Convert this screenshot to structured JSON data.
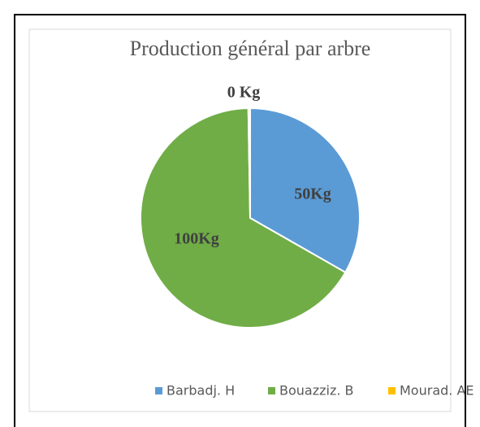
{
  "chart_data": {
    "type": "pie",
    "title": "Production général par arbre",
    "categories": [
      "Barbadj. H",
      "Bouazziz. B",
      "Mourad. AE"
    ],
    "values": [
      50,
      100,
      0.4
    ],
    "value_labels": [
      "50Kg",
      "100Kg",
      "0 Kg"
    ],
    "colors": [
      "#5b9bd5",
      "#70ad47",
      "#ffc000"
    ],
    "legend": "bottom"
  }
}
